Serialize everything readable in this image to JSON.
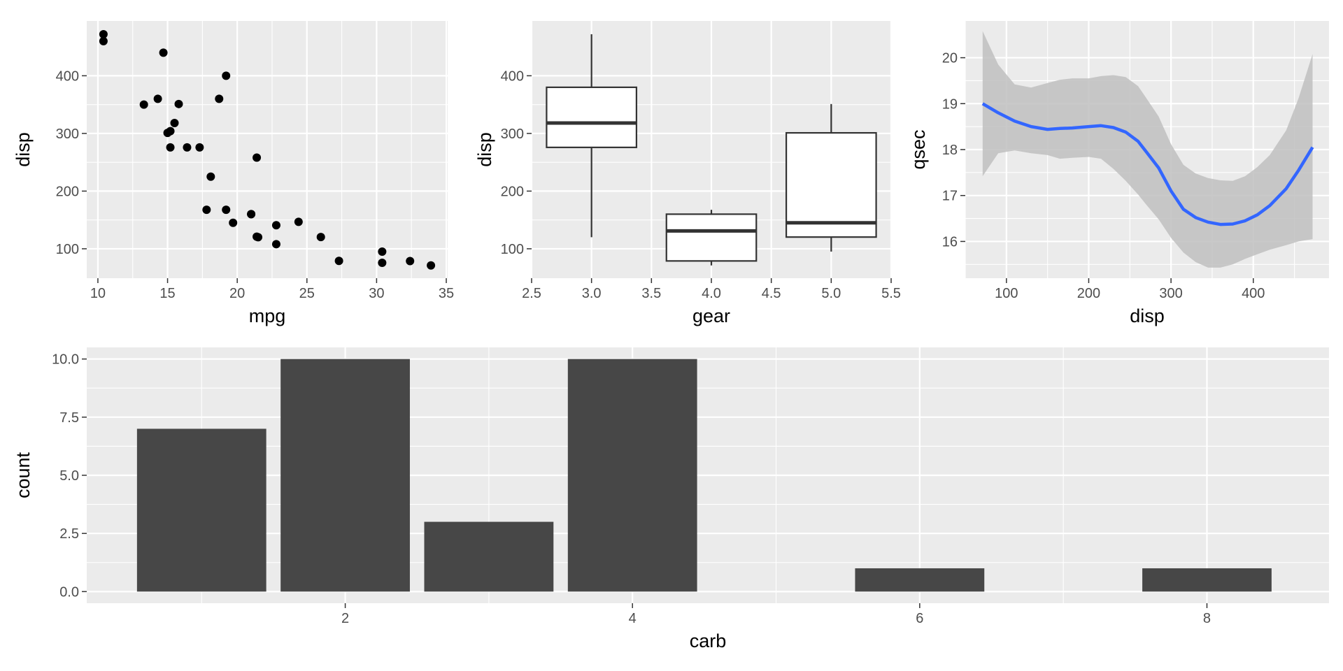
{
  "chart_data": [
    {
      "type": "scatter",
      "xlabel": "mpg",
      "ylabel": "disp",
      "xlim": [
        9.2,
        35.1
      ],
      "ylim": [
        49,
        495
      ],
      "xticks": [
        10,
        15,
        20,
        25,
        30,
        35
      ],
      "yticks": [
        100,
        200,
        300,
        400
      ],
      "grid": true,
      "series": [
        {
          "x": [
            21.0,
            21.0,
            22.8,
            21.4,
            18.7,
            18.1,
            14.3,
            24.4,
            22.8,
            19.2,
            17.8,
            16.4,
            17.3,
            15.2,
            10.4,
            10.4,
            14.7,
            32.4,
            30.4,
            33.9,
            21.5,
            15.5,
            15.2,
            13.3,
            19.2,
            27.3,
            26.0,
            30.4,
            15.8,
            19.7,
            15.0,
            21.4
          ],
          "y": [
            160,
            160,
            108,
            258,
            360,
            225,
            360,
            146.7,
            140.8,
            167.6,
            167.6,
            275.8,
            275.8,
            275.8,
            472,
            460,
            440,
            78.7,
            75.7,
            71.1,
            120.1,
            318,
            304,
            350,
            400,
            79,
            120.3,
            95.1,
            351,
            145,
            301,
            121
          ]
        }
      ]
    },
    {
      "type": "boxplot",
      "xlabel": "gear",
      "ylabel": "disp",
      "xlim": [
        2.5,
        5.5
      ],
      "ylim": [
        49,
        495
      ],
      "xticks": [
        2.5,
        3.0,
        3.5,
        4.0,
        4.5,
        5.0,
        5.5
      ],
      "yticks": [
        100,
        200,
        300,
        400
      ],
      "grid": true,
      "boxes": [
        {
          "x": 3,
          "min": 120.1,
          "q1": 275.8,
          "median": 318,
          "q3": 380,
          "max": 472
        },
        {
          "x": 4,
          "min": 71.1,
          "q1": 78.9,
          "median": 130.9,
          "q3": 160,
          "max": 167.6
        },
        {
          "x": 5,
          "min": 95.1,
          "q1": 120.3,
          "median": 145,
          "q3": 301,
          "max": 351
        }
      ]
    },
    {
      "type": "line",
      "xlabel": "disp",
      "ylabel": "qsec",
      "xlim": [
        50,
        492
      ],
      "ylim": [
        15.2,
        20.8
      ],
      "xticks": [
        100,
        200,
        300,
        400
      ],
      "yticks": [
        16,
        17,
        18,
        19,
        20
      ],
      "grid": true,
      "line_color": "#3366ff",
      "band_color": "#c0c0c0",
      "series": [
        {
          "x": [
            71.1,
            90,
            110,
            130,
            150,
            165,
            180,
            200,
            215,
            230,
            245,
            260,
            270,
            285,
            300,
            315,
            330,
            345,
            360,
            375,
            390,
            405,
            420,
            440,
            455,
            472
          ],
          "y": [
            19.0,
            18.8,
            18.62,
            18.5,
            18.44,
            18.46,
            18.47,
            18.5,
            18.52,
            18.48,
            18.38,
            18.18,
            17.95,
            17.6,
            17.1,
            16.7,
            16.52,
            16.42,
            16.37,
            16.38,
            16.45,
            16.58,
            16.78,
            17.15,
            17.55,
            18.05
          ],
          "lower": [
            17.42,
            17.92,
            17.98,
            17.92,
            17.88,
            17.8,
            17.82,
            17.84,
            17.8,
            17.58,
            17.32,
            17.02,
            16.8,
            16.48,
            16.08,
            15.76,
            15.55,
            15.43,
            15.43,
            15.5,
            15.62,
            15.72,
            15.82,
            15.92,
            16.0,
            16.05
          ],
          "upper": [
            20.58,
            19.85,
            19.42,
            19.35,
            19.45,
            19.52,
            19.55,
            19.55,
            19.6,
            19.62,
            19.58,
            19.38,
            19.12,
            18.72,
            18.12,
            17.67,
            17.48,
            17.38,
            17.33,
            17.32,
            17.42,
            17.62,
            17.88,
            18.42,
            19.12,
            20.08
          ]
        }
      ]
    },
    {
      "type": "bar",
      "xlabel": "carb",
      "ylabel": "count",
      "xlim": [
        0.2,
        8.85
      ],
      "ylim": [
        -0.5,
        10.5
      ],
      "xticks": [
        2,
        4,
        6,
        8
      ],
      "yticks": [
        0.0,
        2.5,
        5.0,
        7.5,
        10.0
      ],
      "ytick_labels": [
        "0.0",
        "2.5",
        "5.0",
        "7.5",
        "10.0"
      ],
      "grid": true,
      "bar_color": "#474747",
      "categories": [
        1,
        2,
        3,
        4,
        6,
        8
      ],
      "values": [
        7,
        10,
        3,
        10,
        1,
        1
      ]
    }
  ]
}
